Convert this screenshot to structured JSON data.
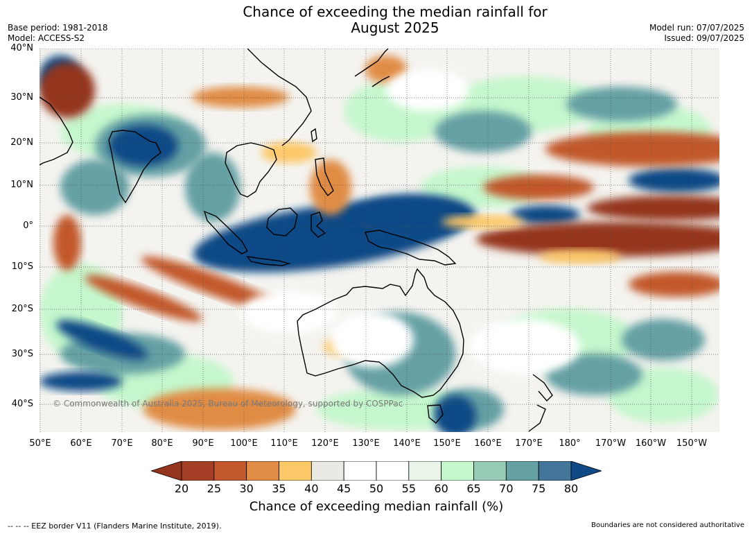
{
  "title": {
    "line1": "Chance of exceeding the median rainfall for",
    "line2": "August 2025"
  },
  "header": {
    "base_period": "Base period: 1981-2018",
    "model": "Model: ACCESS-S2",
    "model_run": "Model run: 07/07/2025",
    "issued": "Issued: 09/07/2025"
  },
  "map": {
    "lat_labels": [
      "40°N",
      "30°N",
      "20°N",
      "10°N",
      "0°",
      "10°S",
      "20°S",
      "30°S",
      "40°S"
    ],
    "lon_labels": [
      "50°E",
      "60°E",
      "70°E",
      "80°E",
      "90°E",
      "100°E",
      "110°E",
      "120°E",
      "130°E",
      "140°E",
      "150°E",
      "160°E",
      "170°E",
      "180°",
      "170°W",
      "160°W",
      "150°W"
    ],
    "copyright": "© Commonwealth of Australia 2025, Bureau of Meteorology, supported by COSPPac",
    "land_outline_color": "#000000",
    "gridline_style": "dotted"
  },
  "colorbar": {
    "ticks": [
      "20",
      "25",
      "30",
      "35",
      "40",
      "45",
      "50",
      "55",
      "60",
      "65",
      "70",
      "75",
      "80"
    ],
    "colors": [
      "#a43e24",
      "#c2582c",
      "#e08c45",
      "#fdc868",
      "#ebe9e4",
      "#ffffff",
      "#ffffff",
      "#e9f5e9",
      "#c5f7cc",
      "#96cbb5",
      "#65a0a4",
      "#44769a"
    ],
    "below_color": "#94361f",
    "above_color": "#104a86",
    "label": "Chance of exceeding median rainfall (%)"
  },
  "footer": {
    "eez": "--  --  -- EEZ border V11 (Flanders Marine Institute, 2019).",
    "disclaimer": "Boundaries are not considered authoritative"
  }
}
